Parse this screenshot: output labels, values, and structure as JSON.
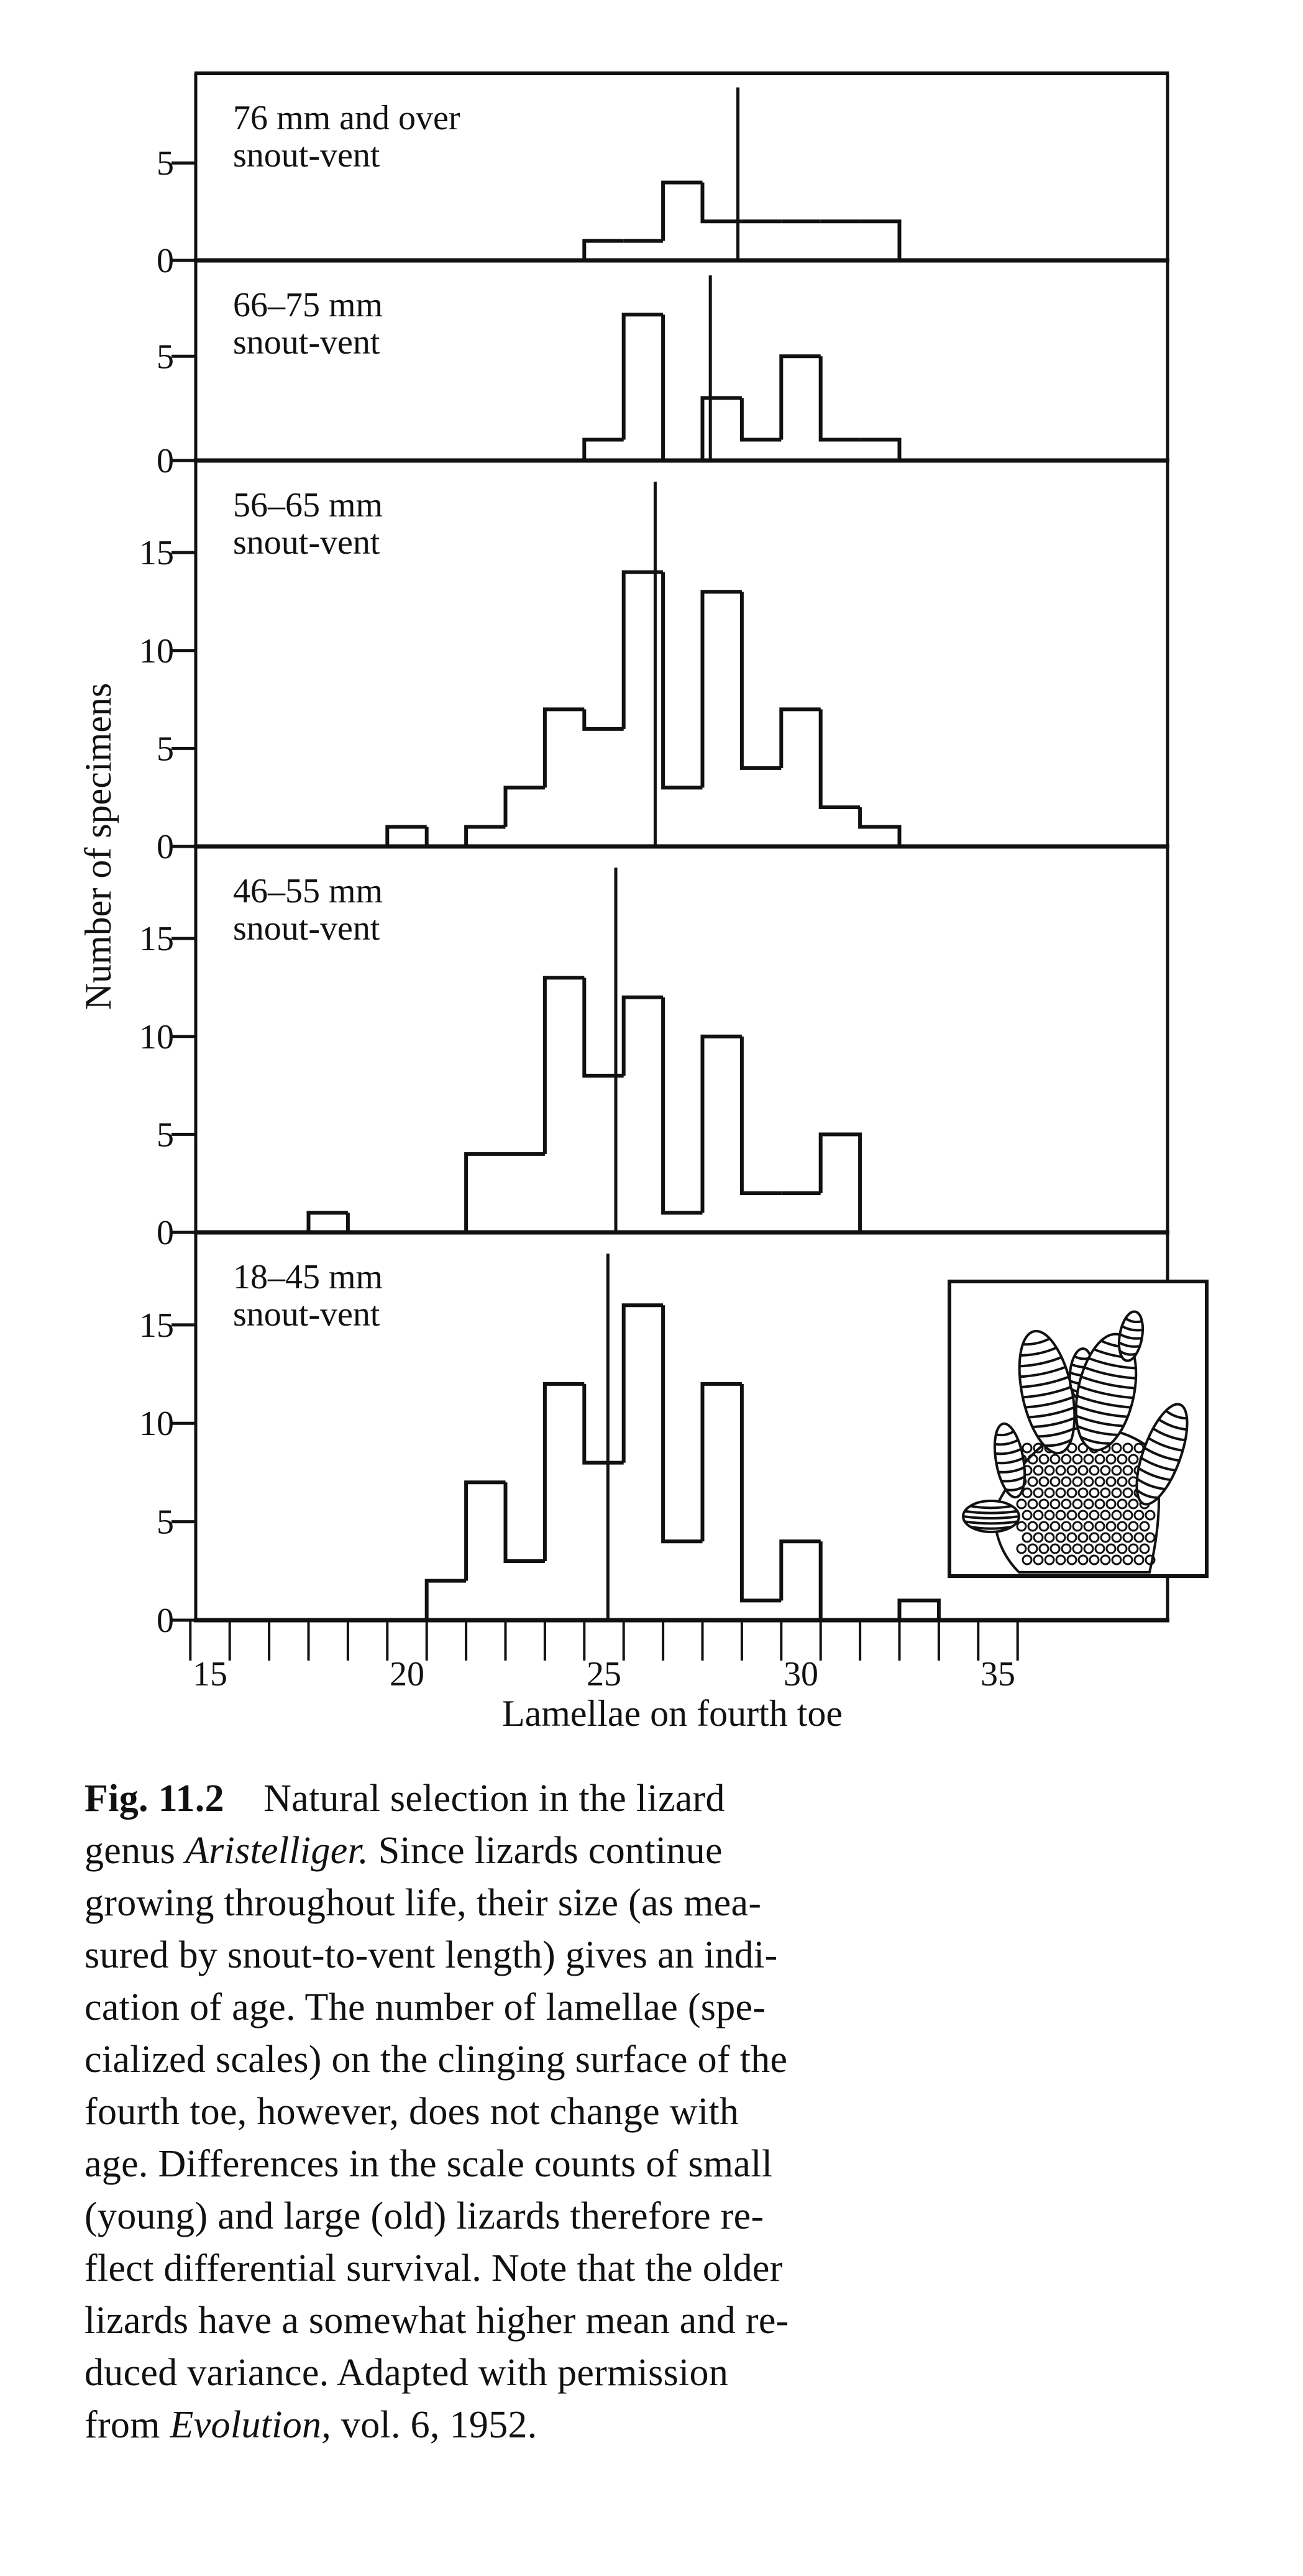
{
  "chart_data": {
    "type": "bar",
    "subtype": "stacked-histogram-panels",
    "xlabel": "Lamellae on fourth toe",
    "ylabel": "Number of specimens",
    "xlim": [
      14.6,
      39.3
    ],
    "x_tick_labels": [
      "15",
      "20",
      "25",
      "30",
      "35"
    ],
    "x_tick_values": [
      15,
      20,
      25,
      30,
      35
    ],
    "grid": false,
    "panels": [
      {
        "label_line1": "76 mm and over",
        "label_line2": "snout-vent",
        "ylim": [
          0,
          9.6
        ],
        "y_ticks": [
          "0",
          "5"
        ],
        "x_start": 25,
        "counts": [
          1,
          1,
          4,
          2,
          2,
          2,
          2,
          2
        ],
        "mean": 28.4
      },
      {
        "label_line1": "66–75 mm",
        "label_line2": "snout-vent",
        "ylim": [
          0,
          9.6
        ],
        "y_ticks": [
          "0",
          "5"
        ],
        "x_start": 25,
        "counts": [
          1,
          7,
          0,
          3,
          1,
          5,
          1,
          1
        ],
        "mean": 27.7
      },
      {
        "label_line1": "56–65 mm",
        "label_line2": "snout-vent",
        "ylim": [
          0,
          19.7
        ],
        "y_ticks": [
          "0",
          "5",
          "10",
          "15"
        ],
        "x_start": 20,
        "counts": [
          1,
          0,
          1,
          3,
          7,
          6,
          14,
          3,
          13,
          4,
          7,
          2,
          1
        ],
        "mean": 26.3
      },
      {
        "label_line1": "46–55 mm",
        "label_line2": "snout-vent",
        "ylim": [
          0,
          19.7
        ],
        "y_ticks": [
          "0",
          "5",
          "10",
          "15"
        ],
        "x_start": 18,
        "counts": [
          1,
          0,
          0,
          0,
          4,
          4,
          13,
          8,
          12,
          1,
          10,
          2,
          2,
          5
        ],
        "mean": 25.3
      },
      {
        "label_line1": "18–45 mm",
        "label_line2": "snout-vent",
        "ylim": [
          0,
          19.7
        ],
        "y_ticks": [
          "0",
          "5",
          "10",
          "15"
        ],
        "x_start": 21,
        "counts": [
          2,
          7,
          3,
          12,
          8,
          16,
          4,
          12,
          1,
          4,
          0,
          0,
          1
        ],
        "mean": 25.1
      }
    ],
    "inset": "lizard-foot-illustration"
  },
  "caption": {
    "lines": [
      [
        {
          "text": "Fig. 11.2",
          "style": "bold"
        },
        {
          "text": "    Natural selection in the lizard",
          "style": ""
        }
      ],
      [
        {
          "text": "genus ",
          "style": ""
        },
        {
          "text": "Aristelliger.",
          "style": "italic"
        },
        {
          "text": " Since lizards continue",
          "style": ""
        }
      ],
      [
        {
          "text": "growing throughout life, their size (as mea-",
          "style": ""
        }
      ],
      [
        {
          "text": "sured by snout-to-vent length) gives an indi-",
          "style": ""
        }
      ],
      [
        {
          "text": "cation of age. The number of lamellae (spe-",
          "style": ""
        }
      ],
      [
        {
          "text": "cialized scales) on the clinging surface of the",
          "style": ""
        }
      ],
      [
        {
          "text": "fourth toe, however, does not change with",
          "style": ""
        }
      ],
      [
        {
          "text": "age. Differences in the scale counts of small",
          "style": ""
        }
      ],
      [
        {
          "text": "(young) and large (old) lizards therefore re-",
          "style": ""
        }
      ],
      [
        {
          "text": "flect differential survival. Note that the older",
          "style": ""
        }
      ],
      [
        {
          "text": "lizards have a somewhat higher mean and re-",
          "style": ""
        }
      ],
      [
        {
          "text": "duced variance. Adapted with permission",
          "style": ""
        }
      ],
      [
        {
          "text": "from ",
          "style": ""
        },
        {
          "text": "Evolution,",
          "style": "italic"
        },
        {
          "text": " vol. 6, 1952.",
          "style": ""
        }
      ]
    ]
  }
}
